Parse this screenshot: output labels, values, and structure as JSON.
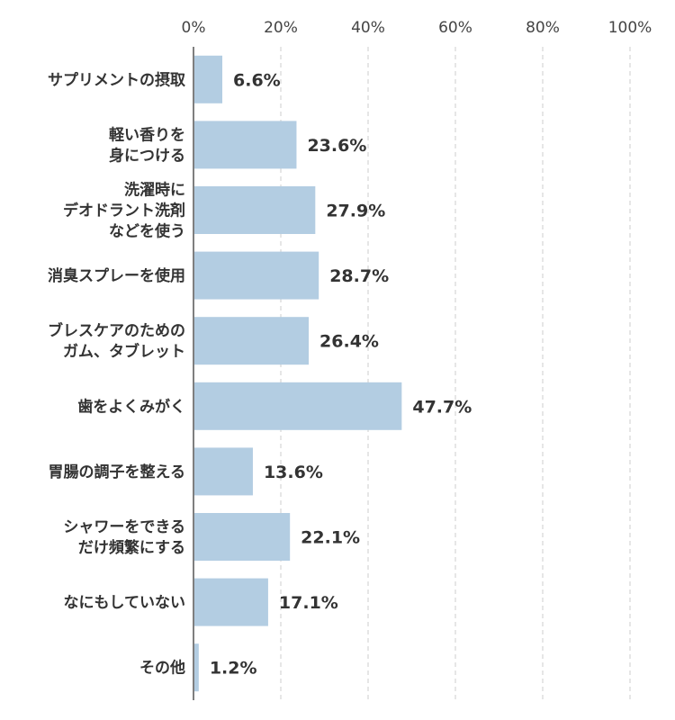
{
  "chart_data": {
    "type": "bar",
    "orientation": "horizontal",
    "categories": [
      [
        "サプリメントの摂取"
      ],
      [
        "軽い香りを",
        "身につける"
      ],
      [
        "洗濯時に",
        "デオドラント洗剤",
        "などを使う"
      ],
      [
        "消臭スプレーを使用"
      ],
      [
        "ブレスケアのための",
        "ガム、タブレット"
      ],
      [
        "歯をよくみがく"
      ],
      [
        "胃腸の調子を整える"
      ],
      [
        "シャワーをできる",
        "だけ頻繁にする"
      ],
      [
        "なにもしていない"
      ],
      [
        "その他"
      ]
    ],
    "values": [
      6.6,
      23.6,
      27.9,
      28.7,
      26.4,
      47.7,
      13.6,
      22.1,
      17.1,
      1.2
    ],
    "value_labels": [
      "6.6%",
      "23.6%",
      "27.9%",
      "28.7%",
      "26.4%",
      "47.7%",
      "13.6%",
      "22.1%",
      "17.1%",
      "1.2%"
    ],
    "xlim": [
      0,
      100
    ],
    "xticks": [
      0,
      20,
      40,
      60,
      80,
      100
    ],
    "xtick_labels": [
      "0%",
      "20%",
      "40%",
      "60%",
      "80%",
      "100%"
    ],
    "x_axis_position": "top",
    "grid": "vertical-dashed",
    "bar_color": "#b3cde2",
    "axis_color": "#555555",
    "grid_color": "#cccccc"
  }
}
